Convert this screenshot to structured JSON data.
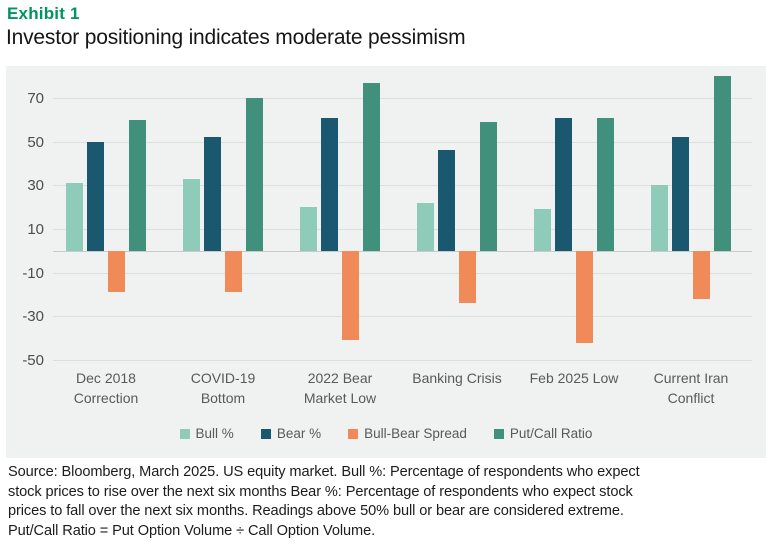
{
  "header": {
    "exhibit_label": "Exhibit 1",
    "title": "Investor positioning indicates moderate pessimism"
  },
  "colors": {
    "accent_green": "#00945e",
    "bull": "#8ecbb9",
    "bear": "#1a5870",
    "spread": "#f08a59",
    "put_call": "#41907b"
  },
  "chart_data": {
    "type": "bar",
    "title": "Investor positioning indicates moderate pessimism",
    "categories": [
      "Dec 2018\nCorrection",
      "COVID-19\nBottom",
      "2022 Bear\nMarket Low",
      "Banking Crisis",
      "Feb 2025 Low",
      "Current Iran\nConflict"
    ],
    "series": [
      {
        "name": "Bull %",
        "color": "#8ecbb9",
        "values": [
          31,
          33,
          20,
          22,
          19,
          30
        ]
      },
      {
        "name": "Bear %",
        "color": "#1a5870",
        "values": [
          50,
          52,
          61,
          46,
          61,
          52
        ]
      },
      {
        "name": "Bull-Bear Spread",
        "color": "#f08a59",
        "values": [
          -19,
          -19,
          -41,
          -24,
          -42,
          -22
        ]
      },
      {
        "name": "Put/Call Ratio",
        "color": "#41907b",
        "values": [
          60,
          70,
          77,
          59,
          61,
          80
        ]
      }
    ],
    "y_ticks": [
      70,
      50,
      30,
      10,
      -10,
      -30,
      -50
    ],
    "ylim": [
      -50,
      82
    ],
    "xlabel": "",
    "ylabel": "",
    "grid": true,
    "legend_position": "bottom"
  },
  "footer": {
    "lines": [
      "Source: Bloomberg, March 2025. US equity market. Bull %: Percentage of respondents who expect",
      "stock prices to rise over the next six months Bear %: Percentage of respondents who expect stock",
      "prices to fall over the next six months. Readings above 50% bull or bear are considered extreme.",
      "Put/Call Ratio = Put Option Volume ÷ Call Option Volume."
    ]
  }
}
